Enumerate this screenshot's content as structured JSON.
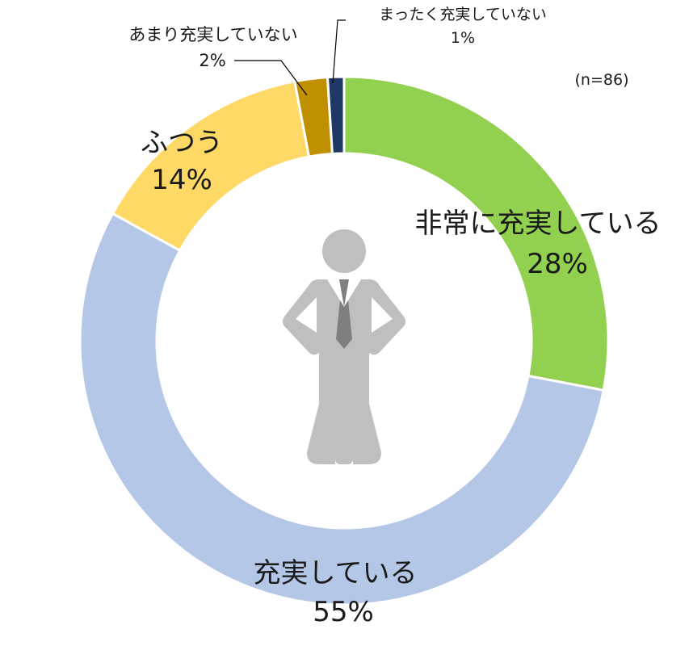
{
  "chart_data": {
    "type": "pie",
    "subtype": "donut",
    "note_n": "(n=86)",
    "slices": [
      {
        "name": "非常に充実している",
        "value": 28,
        "value_label": "28%",
        "color": "#92D050"
      },
      {
        "name": "充実している",
        "value": 55,
        "value_label": "55%",
        "color": "#B4C7E7"
      },
      {
        "name": "ふつう",
        "value": 14,
        "value_label": "14%",
        "color": "#FFD966"
      },
      {
        "name": "あまり充実していない",
        "value": 2,
        "value_label": "2%",
        "color": "#BF9000"
      },
      {
        "name": "まったく充実していない",
        "value": 1,
        "value_label": "1%",
        "color": "#203864"
      }
    ],
    "center_icon": "businessman-icon",
    "icon_color": "#BFBFBF"
  }
}
